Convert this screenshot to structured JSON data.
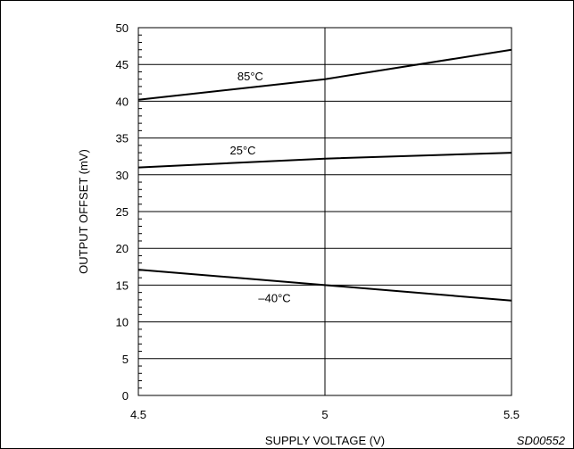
{
  "chart_data": {
    "type": "line",
    "title": "",
    "xlabel": "SUPPLY VOLTAGE (V)",
    "ylabel": "OUTPUT OFFSET (mV)",
    "xlim": [
      4.5,
      5.5
    ],
    "ylim": [
      0,
      50
    ],
    "xticks": [
      "4.5",
      "5",
      "5.5"
    ],
    "yticks": [
      "0",
      "5",
      "10",
      "15",
      "20",
      "25",
      "30",
      "35",
      "40",
      "45",
      "50"
    ],
    "grid": true,
    "series": [
      {
        "name": "85°C",
        "x": [
          4.5,
          5.0,
          5.5
        ],
        "y": [
          40.2,
          43.0,
          47.0
        ]
      },
      {
        "name": "25°C",
        "x": [
          4.5,
          5.0,
          5.5
        ],
        "y": [
          31.0,
          32.2,
          33.0
        ]
      },
      {
        "name": "–40°C",
        "x": [
          4.5,
          5.0,
          5.5
        ],
        "y": [
          17.1,
          15.0,
          12.9
        ]
      }
    ],
    "annotations": {
      "figure_code": "SD00552"
    }
  }
}
